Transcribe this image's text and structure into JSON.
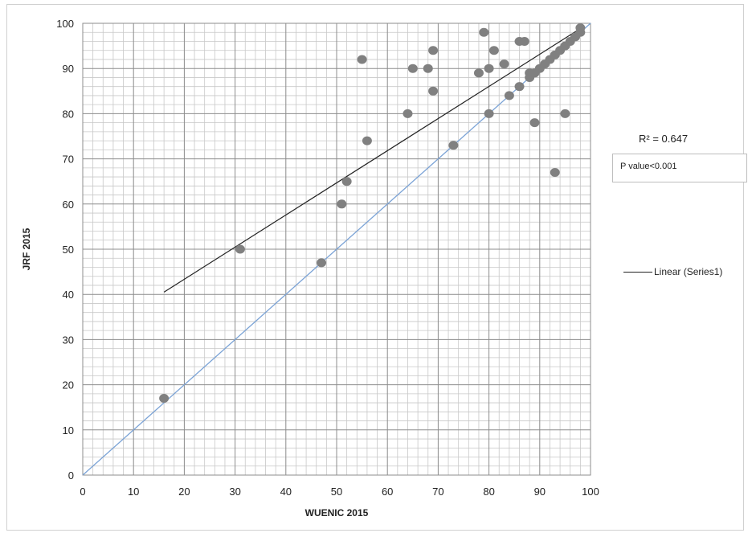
{
  "chart_data": {
    "type": "scatter",
    "xlabel": "WUENIC 2015",
    "ylabel": "JRF 2015",
    "xlim": [
      0,
      100
    ],
    "ylim": [
      0,
      100
    ],
    "xticks": [
      0,
      10,
      20,
      30,
      40,
      50,
      60,
      70,
      80,
      90,
      100
    ],
    "yticks": [
      0,
      10,
      20,
      30,
      40,
      50,
      60,
      70,
      80,
      90,
      100
    ],
    "grid": true,
    "minor_grid": true,
    "series": [
      {
        "points": [
          [
            16,
            17
          ],
          [
            31,
            50
          ],
          [
            47,
            47
          ],
          [
            51,
            60
          ],
          [
            52,
            65
          ],
          [
            55,
            92
          ],
          [
            56,
            74
          ],
          [
            64,
            80
          ],
          [
            65,
            90
          ],
          [
            68,
            90
          ],
          [
            69,
            85
          ],
          [
            69,
            94
          ],
          [
            73,
            73
          ],
          [
            78,
            89
          ],
          [
            79,
            98
          ],
          [
            80,
            90
          ],
          [
            80,
            80
          ],
          [
            81,
            94
          ],
          [
            83,
            91
          ],
          [
            84,
            84
          ],
          [
            86,
            96
          ],
          [
            86,
            86
          ],
          [
            87,
            96
          ],
          [
            88,
            88
          ],
          [
            88,
            89
          ],
          [
            89,
            78
          ],
          [
            89,
            89
          ],
          [
            90,
            90
          ],
          [
            91,
            91
          ],
          [
            92,
            92
          ],
          [
            93,
            67
          ],
          [
            93,
            93
          ],
          [
            94,
            94
          ],
          [
            95,
            80
          ],
          [
            95,
            95
          ],
          [
            96,
            96
          ],
          [
            97,
            97
          ],
          [
            98,
            98
          ],
          [
            98,
            99
          ]
        ],
        "color": "#808080"
      }
    ],
    "trendline": {
      "name": "Linear (Series1)",
      "slope": 0.7114,
      "intercept": 29.12,
      "x_range": [
        16,
        98
      ],
      "color": "#222222"
    },
    "reference_line": {
      "from": [
        0,
        0
      ],
      "to": [
        100,
        100
      ],
      "color": "#7ba3d6"
    },
    "legend_position": "right",
    "annotations": {
      "r_squared": "R² = 0.647",
      "p_value": "P value<0.001"
    }
  }
}
